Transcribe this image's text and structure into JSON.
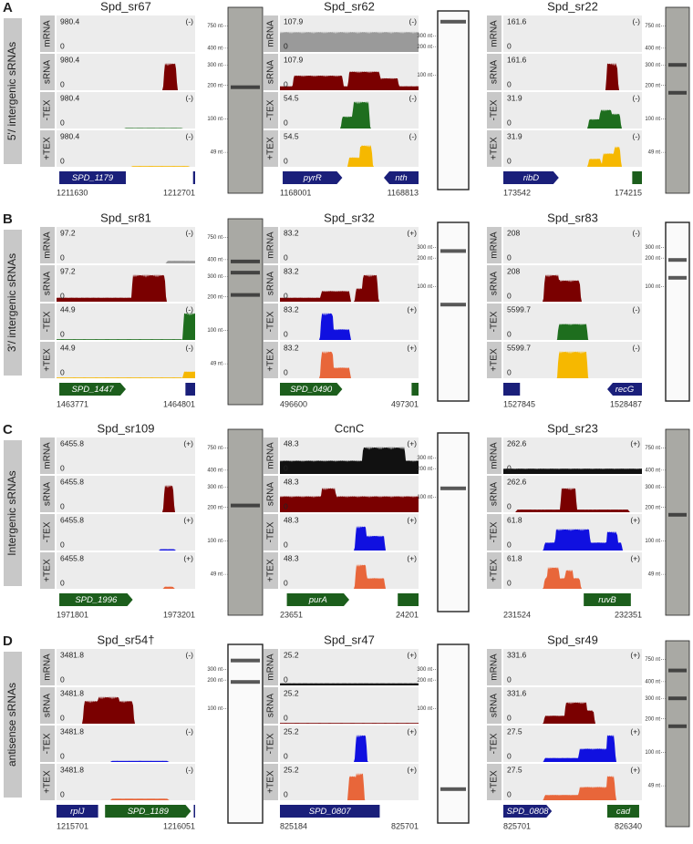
{
  "sections": [
    {
      "letter": "A",
      "label": "5'/ intergenic sRNAs",
      "panels": [
        {
          "title": "Spd_sr67",
          "tracks": [
            {
              "label": "mRNA",
              "max": 980.4,
              "min": 0,
              "strand": "(-)"
            },
            {
              "label": "sRNA",
              "max": 980.4,
              "min": 0
            },
            {
              "label": "-TEX",
              "max": 980.4,
              "min": 0,
              "strand": "(-)"
            },
            {
              "label": "+TEX",
              "max": 980.4,
              "min": 0,
              "strand": "(-)"
            }
          ],
          "genes": [
            "SPD_1179"
          ],
          "start": 1211630,
          "end": 1212701,
          "ladder": [
            "750 nt",
            "400 nt",
            "300 nt",
            "200 nt",
            "100 nt",
            "49 nt"
          ]
        },
        {
          "title": "Spd_sr62",
          "tracks": [
            {
              "label": "mRNA",
              "max": 107.9,
              "min": 0,
              "strand": "(-)"
            },
            {
              "label": "sRNA",
              "max": 107.9,
              "min": 0
            },
            {
              "label": "-TEX",
              "max": 54.5,
              "min": 0,
              "strand": "(-)"
            },
            {
              "label": "+TEX",
              "max": 54.5,
              "min": 0,
              "strand": "(-)"
            }
          ],
          "genes": [
            "pyrR",
            "nth"
          ],
          "start": 1168001,
          "end": 1168813,
          "ladder": [
            "300 nt",
            "200 nt",
            "100 nt"
          ]
        },
        {
          "title": "Spd_sr22",
          "tracks": [
            {
              "label": "mRNA",
              "max": 161.6,
              "min": 0,
              "strand": "(-)"
            },
            {
              "label": "sRNA",
              "max": 161.6,
              "min": 0
            },
            {
              "label": "-TEX",
              "max": 31.9,
              "min": 0,
              "strand": "(-)"
            },
            {
              "label": "+TEX",
              "max": 31.9,
              "min": 0,
              "strand": "(-)"
            }
          ],
          "genes": [
            "ribD"
          ],
          "start": 173542,
          "end": 174215,
          "ladder": [
            "750 nt",
            "400 nt",
            "300 nt",
            "200 nt",
            "100 nt",
            "49 nt"
          ]
        }
      ]
    },
    {
      "letter": "B",
      "label": "3'/ intergenic sRNAs",
      "panels": [
        {
          "title": "Spd_sr81",
          "tracks": [
            {
              "label": "mRNA",
              "max": 97.2,
              "min": 0,
              "strand": "(-)"
            },
            {
              "label": "sRNA",
              "max": 97.2,
              "min": 0
            },
            {
              "label": "-TEX",
              "max": 44.9,
              "min": 0,
              "strand": "(-)"
            },
            {
              "label": "+TEX",
              "max": 44.9,
              "min": 0,
              "strand": "(-)"
            }
          ],
          "genes": [
            "SPD_1447"
          ],
          "start": 1463771,
          "end": 1464801,
          "ladder": [
            "750 nt",
            "400 nt",
            "300 nt",
            "200 nt",
            "100 nt",
            "49 nt"
          ]
        },
        {
          "title": "Spd_sr32",
          "tracks": [
            {
              "label": "mRNA",
              "max": 83.2,
              "min": 0,
              "strand": "(+)"
            },
            {
              "label": "sRNA",
              "max": 83.2,
              "min": 0
            },
            {
              "label": "-TEX",
              "max": 83.2,
              "min": 0,
              "strand": "(+)"
            },
            {
              "label": "+TEX",
              "max": 83.2,
              "min": 0,
              "strand": "(+)"
            }
          ],
          "genes": [
            "SPD_0490"
          ],
          "start": 496600,
          "end": 497301,
          "ladder": [
            "300 nt",
            "200 nt",
            "100 nt"
          ]
        },
        {
          "title": "Spd_sr83",
          "tracks": [
            {
              "label": "mRNA",
              "max": 208,
              "min": 0,
              "strand": "(-)"
            },
            {
              "label": "sRNA",
              "max": 208,
              "min": 0
            },
            {
              "label": "-TEX",
              "max": 5599.7,
              "min": 0,
              "strand": "(-)"
            },
            {
              "label": "+TEX",
              "max": 5599.7,
              "min": 0,
              "strand": "(-)"
            }
          ],
          "genes": [
            "recG"
          ],
          "start": 1527845,
          "end": 1528487,
          "ladder": [
            "300 nt",
            "200 nt",
            "100 nt"
          ]
        }
      ]
    },
    {
      "letter": "C",
      "label": "Intergenic sRNAs",
      "panels": [
        {
          "title": "Spd_sr109",
          "tracks": [
            {
              "label": "mRNA",
              "max": 6455.8,
              "min": 0,
              "strand": "(+)"
            },
            {
              "label": "sRNA",
              "max": 6455.8,
              "min": 0
            },
            {
              "label": "-TEX",
              "max": 6455.8,
              "min": 0,
              "strand": "(+)"
            },
            {
              "label": "+TEX",
              "max": 6455.8,
              "min": 0,
              "strand": "(+)"
            }
          ],
          "genes": [
            "SPD_1996"
          ],
          "start": 1971801,
          "end": 1973201,
          "ladder": [
            "750 nt",
            "400 nt",
            "300 nt",
            "200 nt",
            "100 nt",
            "49 nt"
          ]
        },
        {
          "title": "CcnC",
          "tracks": [
            {
              "label": "mRNA",
              "max": 48.3,
              "min": 0,
              "strand": "(+)"
            },
            {
              "label": "sRNA",
              "max": 48.3,
              "min": 0
            },
            {
              "label": "-TEX",
              "max": 48.3,
              "min": 0,
              "strand": "(+)"
            },
            {
              "label": "+TEX",
              "max": 48.3,
              "min": 0,
              "strand": "(+)"
            }
          ],
          "genes": [
            "purA"
          ],
          "start": 23651,
          "end": 24201,
          "ladder": [
            "300 nt",
            "200 nt",
            "100 nt"
          ]
        },
        {
          "title": "Spd_sr23",
          "tracks": [
            {
              "label": "mRNA",
              "max": 262.6,
              "min": 0,
              "strand": "(+)"
            },
            {
              "label": "sRNA",
              "max": 262.6,
              "min": 0
            },
            {
              "label": "-TEX",
              "max": 61.8,
              "min": 0,
              "strand": "(+)"
            },
            {
              "label": "+TEX",
              "max": 61.8,
              "min": 0,
              "strand": "(+)"
            }
          ],
          "genes": [
            "ruvB"
          ],
          "start": 231524,
          "end": 232351,
          "ladder": [
            "750 nt",
            "400 nt",
            "300 nt",
            "200 nt",
            "100 nt",
            "49 nt"
          ]
        }
      ]
    },
    {
      "letter": "D",
      "label": "antisense sRNAs",
      "panels": [
        {
          "title": "Spd_sr54†",
          "tracks": [
            {
              "label": "mRNA",
              "max": 3481.8,
              "min": 0,
              "strand": "(-)"
            },
            {
              "label": "sRNA",
              "max": 3481.8,
              "min": 0
            },
            {
              "label": "-TEX",
              "max": 3481.8,
              "min": 0,
              "strand": "(-)"
            },
            {
              "label": "+TEX",
              "max": 3481.8,
              "min": 0,
              "strand": "(-)"
            }
          ],
          "genes": [
            "rplJ",
            "SPD_1189"
          ],
          "start": 1215701,
          "end": 1216051,
          "ladder": [
            "300 nt",
            "200 nt",
            "100 nt"
          ]
        },
        {
          "title": "Spd_sr47",
          "tracks": [
            {
              "label": "mRNA",
              "max": 25.2,
              "min": 0,
              "strand": "(+)"
            },
            {
              "label": "sRNA",
              "max": 25.2,
              "min": 0
            },
            {
              "label": "-TEX",
              "max": 25.2,
              "min": 0,
              "strand": "(+)"
            },
            {
              "label": "+TEX",
              "max": 25.2,
              "min": 0,
              "strand": "(+)"
            }
          ],
          "genes": [
            "SPD_0807"
          ],
          "start": 825184,
          "end": 825701,
          "ladder": [
            "300 nt",
            "200 nt",
            "100 nt"
          ]
        },
        {
          "title": "Spd_sr49",
          "tracks": [
            {
              "label": "mRNA",
              "max": 331.6,
              "min": 0,
              "strand": "(+)"
            },
            {
              "label": "sRNA",
              "max": 331.6,
              "min": 0
            },
            {
              "label": "-TEX",
              "max": 27.5,
              "min": 0,
              "strand": "(+)"
            },
            {
              "label": "+TEX",
              "max": 27.5,
              "min": 0,
              "strand": "(+)"
            }
          ],
          "genes": [
            "SPD_0808",
            "cad"
          ],
          "start": 825701,
          "end": 826340,
          "ladder": [
            "750 nt",
            "400 nt",
            "300 nt",
            "200 nt",
            "100 nt",
            "49 nt"
          ]
        }
      ]
    }
  ]
}
